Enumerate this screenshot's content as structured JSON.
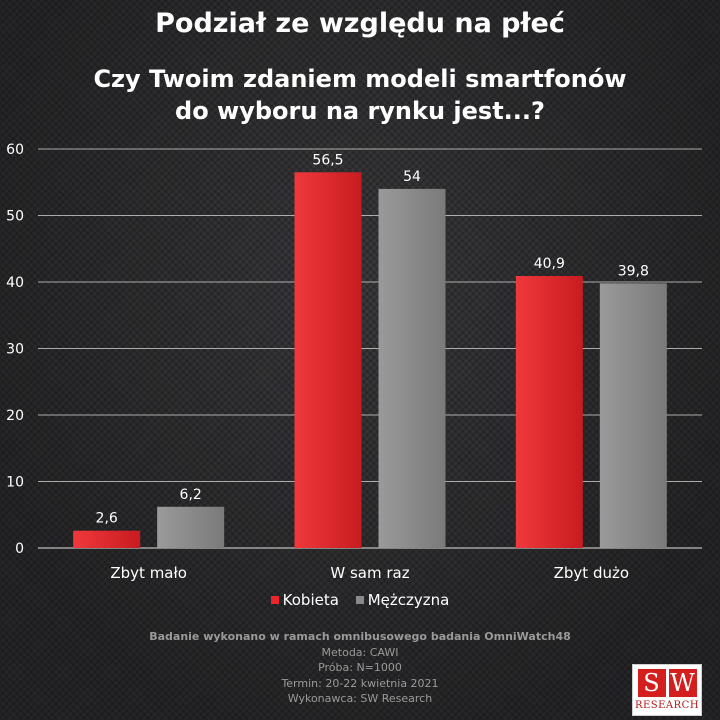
{
  "header": {
    "title": "Podział ze względu na płeć",
    "subtitle_line1": "Czy Twoim zdaniem modeli smartfonów",
    "subtitle_line2": "do wyboru na rynku jest...?"
  },
  "chart_data": {
    "type": "bar",
    "categories": [
      "Zbyt mało",
      "W sam raz",
      "Zbyt dużo"
    ],
    "series": [
      {
        "name": "Kobieta",
        "values": [
          2.6,
          56.5,
          40.9
        ],
        "labels": [
          "2,6",
          "56,5",
          "40,9"
        ],
        "color": "#e8262b"
      },
      {
        "name": "Mężczyzna",
        "values": [
          6.2,
          54,
          39.8
        ],
        "labels": [
          "6,2",
          "54",
          "39,8"
        ],
        "color": "#8a8a8a"
      }
    ],
    "ylim": [
      0,
      60
    ],
    "yticks": [
      0,
      10,
      20,
      30,
      40,
      50,
      60
    ],
    "grid": true,
    "legend": "bottom"
  },
  "footer": {
    "line1": "Badanie wykonano w ramach omnibusowego badania OmniWatch48",
    "line2": "Metoda: CAWI",
    "line3": "Próba: N=1000",
    "line4": "Termin: 20-22 kwietnia 2021",
    "line5": "Wykonawca: SW Research"
  },
  "logo": {
    "letter1": "S",
    "letter2": "W",
    "text": "RESEARCH"
  }
}
